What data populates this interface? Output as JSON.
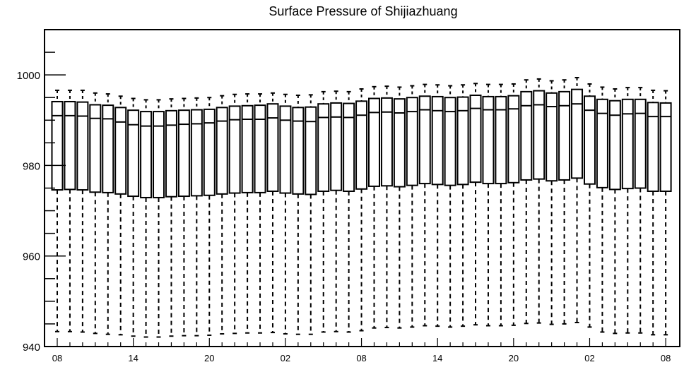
{
  "chart_data": {
    "type": "box",
    "title": "Surface Pressure of Shijiazhuang",
    "xlabel": "",
    "ylabel": "",
    "ylim": [
      940,
      1010
    ],
    "yticks": [
      940,
      960,
      980,
      1000
    ],
    "ytick_labels": [
      "940",
      "960",
      "980",
      "1000"
    ],
    "xtick_labels": [
      "08",
      "14",
      "20",
      "02",
      "08",
      "14",
      "20",
      "02",
      "08"
    ],
    "xtick_positions": [
      0,
      6,
      12,
      18,
      24,
      30,
      36,
      42,
      48
    ],
    "grid": false,
    "color": "#000000",
    "series": [
      {
        "x": 0,
        "whislo": 943.3,
        "q1": 974.6,
        "med": 991.0,
        "q3": 994.1,
        "whishi": 996.6
      },
      {
        "x": 1,
        "whislo": 943.3,
        "q1": 974.7,
        "med": 991.0,
        "q3": 994.1,
        "whishi": 996.6
      },
      {
        "x": 2,
        "whislo": 943.2,
        "q1": 974.6,
        "med": 990.9,
        "q3": 994.0,
        "whishi": 996.6
      },
      {
        "x": 3,
        "whislo": 942.9,
        "q1": 974.1,
        "med": 990.4,
        "q3": 993.4,
        "whishi": 996.0
      },
      {
        "x": 4,
        "whislo": 942.7,
        "q1": 974.0,
        "med": 990.3,
        "q3": 993.3,
        "whishi": 995.8
      },
      {
        "x": 5,
        "whislo": 942.6,
        "q1": 973.7,
        "med": 989.6,
        "q3": 992.8,
        "whishi": 995.3
      },
      {
        "x": 6,
        "whislo": 942.3,
        "q1": 973.2,
        "med": 989.0,
        "q3": 992.2,
        "whishi": 994.8
      },
      {
        "x": 7,
        "whislo": 942.1,
        "q1": 972.9,
        "med": 988.7,
        "q3": 991.9,
        "whishi": 994.5
      },
      {
        "x": 8,
        "whislo": 942.1,
        "q1": 972.9,
        "med": 988.7,
        "q3": 991.9,
        "whishi": 994.5
      },
      {
        "x": 9,
        "whislo": 942.3,
        "q1": 973.1,
        "med": 988.9,
        "q3": 992.1,
        "whishi": 994.7
      },
      {
        "x": 10,
        "whislo": 942.4,
        "q1": 973.2,
        "med": 989.1,
        "q3": 992.2,
        "whishi": 994.8
      },
      {
        "x": 11,
        "whislo": 942.4,
        "q1": 973.3,
        "med": 989.2,
        "q3": 992.3,
        "whishi": 994.9
      },
      {
        "x": 12,
        "whislo": 942.5,
        "q1": 973.4,
        "med": 989.4,
        "q3": 992.4,
        "whishi": 995.0
      },
      {
        "x": 13,
        "whislo": 942.8,
        "q1": 973.7,
        "med": 989.8,
        "q3": 992.8,
        "whishi": 995.4
      },
      {
        "x": 14,
        "whislo": 942.9,
        "q1": 973.9,
        "med": 990.1,
        "q3": 993.1,
        "whishi": 995.7
      },
      {
        "x": 15,
        "whislo": 943.0,
        "q1": 974.0,
        "med": 990.2,
        "q3": 993.2,
        "whishi": 995.8
      },
      {
        "x": 16,
        "whislo": 943.0,
        "q1": 974.0,
        "med": 990.2,
        "q3": 993.3,
        "whishi": 995.8
      },
      {
        "x": 17,
        "whislo": 943.1,
        "q1": 974.3,
        "med": 990.5,
        "q3": 993.6,
        "whishi": 996.0
      },
      {
        "x": 18,
        "whislo": 942.8,
        "q1": 973.9,
        "med": 990.0,
        "q3": 993.1,
        "whishi": 995.7
      },
      {
        "x": 19,
        "whislo": 942.7,
        "q1": 973.7,
        "med": 989.8,
        "q3": 992.8,
        "whishi": 995.5
      },
      {
        "x": 20,
        "whislo": 942.7,
        "q1": 973.6,
        "med": 989.7,
        "q3": 992.9,
        "whishi": 995.6
      },
      {
        "x": 21,
        "whislo": 943.2,
        "q1": 974.3,
        "med": 990.6,
        "q3": 993.6,
        "whishi": 996.3
      },
      {
        "x": 22,
        "whislo": 943.3,
        "q1": 974.5,
        "med": 990.7,
        "q3": 993.8,
        "whishi": 996.4
      },
      {
        "x": 23,
        "whislo": 943.2,
        "q1": 974.3,
        "med": 990.6,
        "q3": 993.7,
        "whishi": 996.3
      },
      {
        "x": 24,
        "whislo": 943.5,
        "q1": 974.8,
        "med": 991.1,
        "q3": 994.2,
        "whishi": 996.9
      },
      {
        "x": 25,
        "whislo": 944.1,
        "q1": 975.4,
        "med": 991.7,
        "q3": 994.8,
        "whishi": 997.4
      },
      {
        "x": 26,
        "whislo": 944.2,
        "q1": 975.5,
        "med": 991.8,
        "q3": 994.9,
        "whishi": 997.5
      },
      {
        "x": 27,
        "whislo": 944.1,
        "q1": 975.3,
        "med": 991.6,
        "q3": 994.7,
        "whishi": 997.3
      },
      {
        "x": 28,
        "whislo": 944.3,
        "q1": 975.6,
        "med": 991.9,
        "q3": 995.0,
        "whishi": 997.6
      },
      {
        "x": 29,
        "whislo": 944.6,
        "q1": 976.0,
        "med": 992.3,
        "q3": 995.3,
        "whishi": 997.9
      },
      {
        "x": 30,
        "whislo": 944.5,
        "q1": 975.8,
        "med": 992.1,
        "q3": 995.2,
        "whishi": 997.8
      },
      {
        "x": 31,
        "whislo": 944.3,
        "q1": 975.6,
        "med": 991.9,
        "q3": 995.0,
        "whishi": 997.6
      },
      {
        "x": 32,
        "whislo": 944.5,
        "q1": 975.8,
        "med": 992.1,
        "q3": 995.1,
        "whishi": 997.8
      },
      {
        "x": 33,
        "whislo": 944.8,
        "q1": 976.3,
        "med": 992.6,
        "q3": 995.5,
        "whishi": 998.1
      },
      {
        "x": 34,
        "whislo": 944.6,
        "q1": 976.0,
        "med": 992.3,
        "q3": 995.2,
        "whishi": 997.9
      },
      {
        "x": 35,
        "whislo": 944.6,
        "q1": 976.0,
        "med": 992.3,
        "q3": 995.2,
        "whishi": 997.9
      },
      {
        "x": 36,
        "whislo": 944.7,
        "q1": 976.2,
        "med": 992.5,
        "q3": 995.4,
        "whishi": 998.0
      },
      {
        "x": 37,
        "whislo": 945.1,
        "q1": 976.8,
        "med": 993.2,
        "q3": 996.3,
        "whishi": 998.9
      },
      {
        "x": 38,
        "whislo": 945.2,
        "q1": 977.0,
        "med": 993.4,
        "q3": 996.5,
        "whishi": 999.1
      },
      {
        "x": 39,
        "whislo": 944.9,
        "q1": 976.6,
        "med": 993.0,
        "q3": 996.0,
        "whishi": 998.7
      },
      {
        "x": 40,
        "whislo": 945.0,
        "q1": 976.8,
        "med": 993.2,
        "q3": 996.3,
        "whishi": 998.9
      },
      {
        "x": 41,
        "whislo": 945.3,
        "q1": 977.2,
        "med": 993.6,
        "q3": 996.8,
        "whishi": 999.4
      },
      {
        "x": 42,
        "whislo": 944.3,
        "q1": 975.9,
        "med": 992.2,
        "q3": 995.3,
        "whishi": 998.0
      },
      {
        "x": 43,
        "whislo": 943.2,
        "q1": 975.1,
        "med": 991.5,
        "q3": 994.6,
        "whishi": 997.3
      },
      {
        "x": 44,
        "whislo": 942.9,
        "q1": 974.7,
        "med": 991.1,
        "q3": 994.3,
        "whishi": 996.9
      },
      {
        "x": 45,
        "whislo": 943.0,
        "q1": 974.9,
        "med": 991.4,
        "q3": 994.6,
        "whishi": 997.2
      },
      {
        "x": 46,
        "whislo": 943.0,
        "q1": 975.0,
        "med": 991.5,
        "q3": 994.6,
        "whishi": 997.2
      },
      {
        "x": 47,
        "whislo": 942.6,
        "q1": 974.3,
        "med": 990.8,
        "q3": 993.9,
        "whishi": 996.6
      },
      {
        "x": 48,
        "whislo": 942.6,
        "q1": 974.3,
        "med": 990.8,
        "q3": 993.8,
        "whishi": 996.5
      }
    ]
  }
}
